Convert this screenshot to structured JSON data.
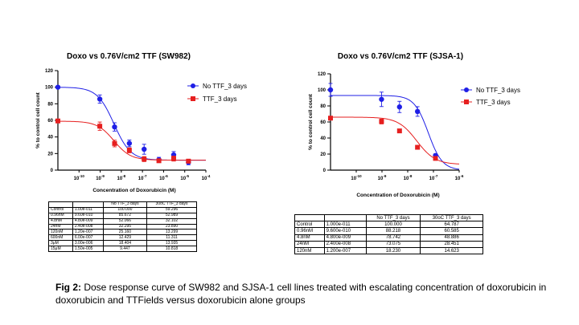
{
  "chart_data": [
    {
      "type": "scatter",
      "title": "Doxo vs 0.76V/cm2 TTF (SW982)",
      "xlabel": "Concentration of Doxorubicin (M)",
      "ylabel": "% to control cell count",
      "x_scale": "log",
      "xlim": [
        1e-11,
        0.0001
      ],
      "ylim": [
        0,
        120
      ],
      "y_ticks": [
        "0",
        "20",
        "40",
        "60",
        "80",
        "100",
        "120"
      ],
      "x_ticks": [
        {
          "value": 1e-10,
          "base": "10",
          "exp": "-10"
        },
        {
          "value": 1e-09,
          "base": "10",
          "exp": "-9"
        },
        {
          "value": 1e-08,
          "base": "10",
          "exp": "-8"
        },
        {
          "value": 1e-07,
          "base": "10",
          "exp": "-7"
        },
        {
          "value": 1e-06,
          "base": "10",
          "exp": "-6"
        },
        {
          "value": 1e-05,
          "base": "10",
          "exp": "-5"
        },
        {
          "value": 0.0001,
          "base": "10",
          "exp": "-4"
        }
      ],
      "legend_position": "right",
      "series": [
        {
          "name": "No TTF_3 days",
          "color": "#1f1fe6",
          "marker": "circle",
          "x": [
            1e-11,
            9.6e-10,
            4.8e-09,
            2.4e-08,
            1.2e-07,
            6e-07,
            3e-06,
            1.5e-05
          ],
          "y": [
            100,
            85.672,
            52.066,
            32.295,
            25.16,
            12.429,
            18.404,
            9.447
          ],
          "err": [
            0,
            5,
            5,
            4,
            6,
            3,
            4,
            3
          ],
          "fit": {
            "top": 100,
            "bottom": 12,
            "log_ec50": -8.35,
            "hill": 1.1
          }
        },
        {
          "name": "TTF_3 days",
          "color": "#e61f1f",
          "marker": "square",
          "x": [
            1e-11,
            9.6e-10,
            4.8e-09,
            2.4e-08,
            1.2e-07,
            6e-07,
            3e-06,
            1.5e-05
          ],
          "y": [
            59.296,
            52.989,
            32.102,
            23.89,
            13.299,
            11.311,
            13.935,
            10.818
          ],
          "err": [
            0,
            5,
            4,
            3,
            3,
            2,
            3,
            2
          ],
          "fit": {
            "top": 59,
            "bottom": 12,
            "log_ec50": -8.35,
            "hill": 1.1
          }
        }
      ]
    },
    {
      "type": "scatter",
      "title": "Doxo vs 0.76V/cm2 TTF (SJSA-1)",
      "xlabel": "Concentration of Doxorubicin (M)",
      "ylabel": "% to control cell count",
      "x_scale": "log",
      "xlim": [
        1e-11,
        1e-06
      ],
      "ylim": [
        0,
        120
      ],
      "y_ticks": [
        "0",
        "20",
        "40",
        "60",
        "80",
        "100",
        "120"
      ],
      "x_ticks": [
        {
          "value": 1e-10,
          "base": "10",
          "exp": "-10"
        },
        {
          "value": 1e-09,
          "base": "10",
          "exp": "-9"
        },
        {
          "value": 1e-08,
          "base": "10",
          "exp": "-8"
        },
        {
          "value": 1e-07,
          "base": "10",
          "exp": "-7"
        },
        {
          "value": 1e-06,
          "base": "10",
          "exp": "-6"
        }
      ],
      "legend_position": "right",
      "series": [
        {
          "name": "No TTF_3 days",
          "color": "#1f1fe6",
          "marker": "circle",
          "x": [
            1e-11,
            9.6e-10,
            4.8e-09,
            2.4e-08,
            1.2e-07
          ],
          "y": [
            100,
            88.218,
            78.742,
            73.075,
            18.23
          ],
          "err": [
            8,
            9,
            7,
            6,
            2
          ],
          "fit": {
            "top": 93,
            "bottom": 0,
            "log_ec50": -7.2,
            "hill": 1.6
          }
        },
        {
          "name": "TTF_3 days",
          "color": "#e61f1f",
          "marker": "square",
          "x": [
            1e-11,
            9.6e-10,
            4.8e-09,
            2.4e-08,
            1.2e-07
          ],
          "y": [
            64.787,
            60.585,
            48.886,
            28.451,
            14.623
          ],
          "err": [
            0,
            3,
            2,
            2,
            2
          ],
          "fit": {
            "top": 66,
            "bottom": 7,
            "log_ec50": -7.65,
            "hill": 1.2
          }
        }
      ]
    }
  ],
  "tables": [
    {
      "headers": [
        "",
        "",
        "No TTF_3 days",
        "30oC TTF_3 days"
      ],
      "rows": [
        [
          "Control",
          "1.00e-011",
          "100.000",
          "59.296"
        ],
        [
          "0.96nM",
          "9.60e-010",
          "85.672",
          "52.989"
        ],
        [
          "4.8nM",
          "4.80e-009",
          "52.066",
          "32.102"
        ],
        [
          "24nM",
          "2.40e-008",
          "32.295",
          "23.890"
        ],
        [
          "120nM",
          "1.20e-007",
          "25.160",
          "13.299"
        ],
        [
          "600nM",
          "6.00e-007",
          "12.429",
          "11.311"
        ],
        [
          "3μM",
          "3.00e-006",
          "18.404",
          "13.935"
        ],
        [
          "15μM",
          "1.50e-005",
          "9.447",
          "10.818"
        ]
      ]
    },
    {
      "headers": [
        "",
        "",
        "No TTF_3 days",
        "30oC TTF_3 days"
      ],
      "rows": [
        [
          "Control",
          "1.000e-011",
          "100.000",
          "64.787"
        ],
        [
          "0.96nM",
          "9.600e-010",
          "88.218",
          "60.585"
        ],
        [
          "4.8nM",
          "4.800e-009",
          "78.742",
          "48.886"
        ],
        [
          "24nM",
          "2.400e-008",
          "73.075",
          "28.451"
        ],
        [
          "120nM",
          "1.200e-007",
          "18.230",
          "14.623"
        ]
      ]
    }
  ],
  "caption": {
    "label": "Fig 2:",
    "text": " Dose response curve of SW982 and SJSA-1 cell lines treated with escalating concentration of doxorubicin in doxorubicin and TTFields versus doxorubicin alone groups"
  }
}
